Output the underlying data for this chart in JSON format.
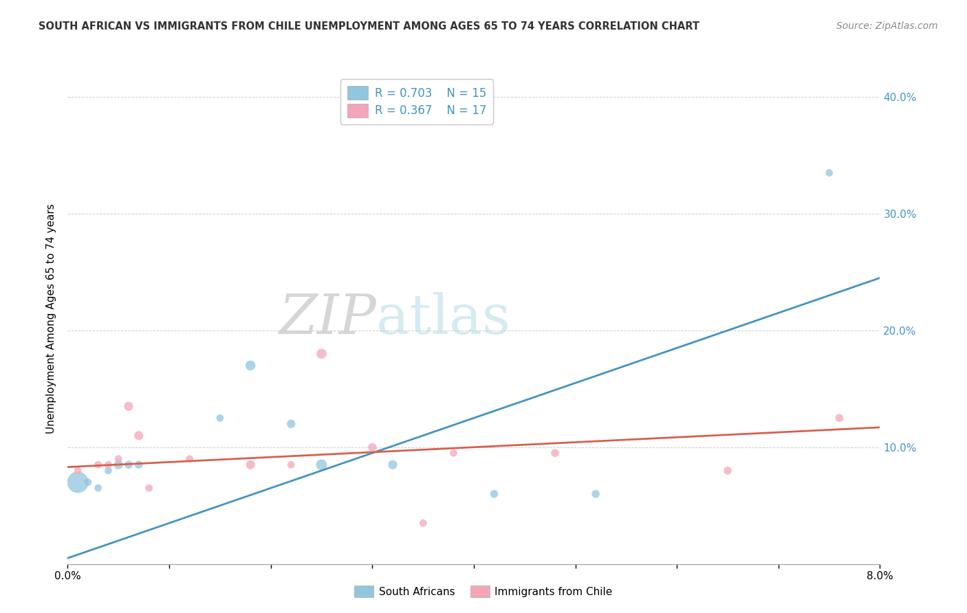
{
  "title": "SOUTH AFRICAN VS IMMIGRANTS FROM CHILE UNEMPLOYMENT AMONG AGES 65 TO 74 YEARS CORRELATION CHART",
  "source": "Source: ZipAtlas.com",
  "ylabel": "Unemployment Among Ages 65 to 74 years",
  "xlim": [
    0.0,
    0.08
  ],
  "ylim": [
    0.0,
    0.42
  ],
  "yticks": [
    0.1,
    0.2,
    0.3,
    0.4
  ],
  "ytick_labels": [
    "10.0%",
    "20.0%",
    "30.0%",
    "40.0%"
  ],
  "xticks": [
    0.0,
    0.01,
    0.02,
    0.03,
    0.04,
    0.05,
    0.06,
    0.07,
    0.08
  ],
  "xtick_labels": [
    "0.0%",
    "",
    "",
    "",
    "",
    "",
    "",
    "",
    "8.0%"
  ],
  "background_color": "#ffffff",
  "watermark_zip": "ZIP",
  "watermark_atlas": "atlas",
  "legend_r1": "R = 0.703",
  "legend_n1": "N = 15",
  "legend_r2": "R = 0.367",
  "legend_n2": "N = 17",
  "legend_label1": "South Africans",
  "legend_label2": "Immigrants from Chile",
  "blue_color": "#92c5de",
  "pink_color": "#f4a6b8",
  "blue_line_color": "#4393c3",
  "pink_line_color": "#d6604d",
  "right_axis_color": "#4393c3",
  "south_africans_x": [
    0.001,
    0.002,
    0.003,
    0.004,
    0.005,
    0.006,
    0.007,
    0.015,
    0.018,
    0.022,
    0.025,
    0.032,
    0.042,
    0.052,
    0.075
  ],
  "south_africans_y": [
    0.07,
    0.07,
    0.065,
    0.08,
    0.085,
    0.085,
    0.085,
    0.125,
    0.17,
    0.12,
    0.085,
    0.085,
    0.06,
    0.06,
    0.335
  ],
  "south_africans_size": [
    500,
    60,
    60,
    60,
    90,
    70,
    70,
    60,
    110,
    80,
    130,
    90,
    70,
    70,
    60
  ],
  "immigrants_x": [
    0.001,
    0.003,
    0.004,
    0.005,
    0.006,
    0.007,
    0.008,
    0.012,
    0.018,
    0.022,
    0.025,
    0.03,
    0.035,
    0.038,
    0.048,
    0.065,
    0.076
  ],
  "immigrants_y": [
    0.08,
    0.085,
    0.085,
    0.09,
    0.135,
    0.11,
    0.065,
    0.09,
    0.085,
    0.085,
    0.18,
    0.1,
    0.035,
    0.095,
    0.095,
    0.08,
    0.125
  ],
  "immigrants_size": [
    60,
    60,
    60,
    60,
    90,
    90,
    60,
    60,
    90,
    60,
    110,
    80,
    60,
    60,
    70,
    70,
    70
  ],
  "blue_trendline_x": [
    0.0,
    0.08
  ],
  "blue_trendline_y": [
    0.005,
    0.245
  ],
  "pink_trendline_x": [
    0.0,
    0.08
  ],
  "pink_trendline_y": [
    0.083,
    0.117
  ]
}
